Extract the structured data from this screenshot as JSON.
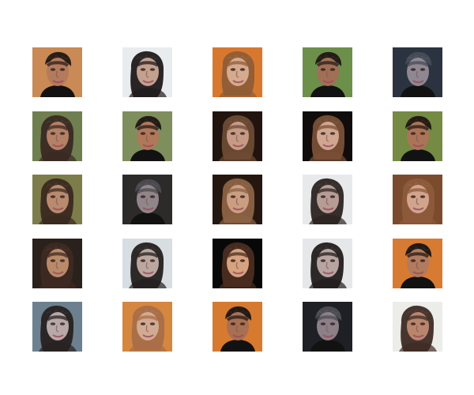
{
  "figure": {
    "rows": 5,
    "cols": 5,
    "samples": [
      {
        "bg": "#c98a55",
        "hair": "#2a1d18",
        "skin": "#b47a5c",
        "style": "dark-short"
      },
      {
        "bg": "#e9ecef",
        "hair": "#1f1a1b",
        "skin": "#c4a08f",
        "style": "dark-long"
      },
      {
        "bg": "#d8782f",
        "hair": "#8f5d36",
        "skin": "#d5aa8e",
        "style": "light-long"
      },
      {
        "bg": "#6c8f4a",
        "hair": "#251c18",
        "skin": "#a16f56",
        "style": "dark-short"
      },
      {
        "bg": "#2b3340",
        "hair": "#454c58",
        "skin": "#8f8792",
        "style": "dark-short"
      },
      {
        "bg": "#6f7f50",
        "hair": "#3a2a23",
        "skin": "#b48066",
        "style": "dark-long"
      },
      {
        "bg": "#7f8e5d",
        "hair": "#231b18",
        "skin": "#b0785a",
        "style": "dark-short"
      },
      {
        "bg": "#21140f",
        "hair": "#6e4b34",
        "skin": "#c69b86",
        "style": "light-long"
      },
      {
        "bg": "#0f0c0b",
        "hair": "#7a5037",
        "skin": "#d0a690",
        "style": "light-long"
      },
      {
        "bg": "#758a43",
        "hair": "#241a16",
        "skin": "#ab7457",
        "style": "dark-short"
      },
      {
        "bg": "#7d7d4b",
        "hair": "#3b2a20",
        "skin": "#b98a6e",
        "style": "dark-long"
      },
      {
        "bg": "#2d2a2a",
        "hair": "#4a4a4f",
        "skin": "#91858a",
        "style": "dark-short"
      },
      {
        "bg": "#24170f",
        "hair": "#8d6245",
        "skin": "#cb9e82",
        "style": "light-long"
      },
      {
        "bg": "#e7e9eb",
        "hair": "#2b2421",
        "skin": "#b79c95",
        "style": "dark-long"
      },
      {
        "bg": "#7a4c2d",
        "hair": "#8e5a3c",
        "skin": "#d2a48d",
        "style": "light-long"
      },
      {
        "bg": "#2a211c",
        "hair": "#3d2a22",
        "skin": "#b98a69",
        "style": "dark-long"
      },
      {
        "bg": "#d8dde1",
        "hair": "#241f1e",
        "skin": "#bca7a0",
        "style": "dark-long"
      },
      {
        "bg": "#080808",
        "hair": "#4a2d20",
        "skin": "#d7a27f",
        "style": "light-long"
      },
      {
        "bg": "#e6e7e8",
        "hair": "#221d1d",
        "skin": "#b8a4a1",
        "style": "dark-long"
      },
      {
        "bg": "#d77b32",
        "hair": "#211916",
        "skin": "#b27a5e",
        "style": "dark-short"
      },
      {
        "bg": "#6c8090",
        "hair": "#282121",
        "skin": "#b8a8a7",
        "style": "dark-long"
      },
      {
        "bg": "#d5863f",
        "hair": "#a86e47",
        "skin": "#d2aa93",
        "style": "light-long"
      },
      {
        "bg": "#d67a30",
        "hair": "#231915",
        "skin": "#a86f53",
        "style": "dark-short"
      },
      {
        "bg": "#1e2025",
        "hair": "#4b4c52",
        "skin": "#8d7f86",
        "style": "dark-short"
      },
      {
        "bg": "#ecece9",
        "hair": "#3d2b24",
        "skin": "#b9856c",
        "style": "dark-long"
      }
    ]
  }
}
